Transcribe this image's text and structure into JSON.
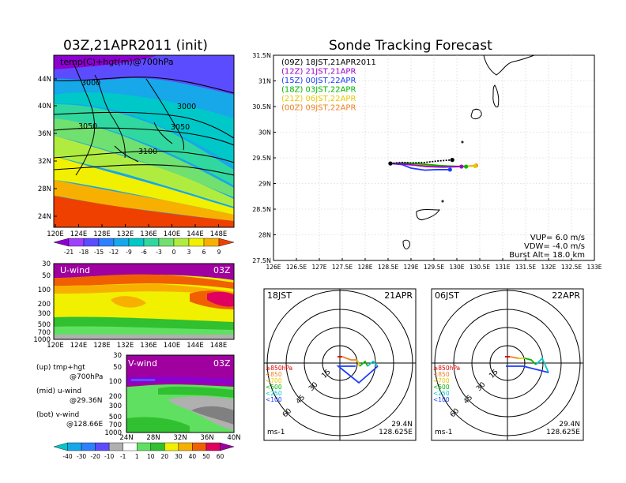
{
  "left": {
    "title": "03Z,21APR2011  (init)",
    "panel_label": "temp(C)+hgt(m)@700hPa",
    "lon_ticks": [
      "120E",
      "124E",
      "128E",
      "132E",
      "136E",
      "140E",
      "144E",
      "148E"
    ],
    "lat_ticks": [
      "44N",
      "40N",
      "36N",
      "32N",
      "28N",
      "24N"
    ],
    "contours": [
      "3000",
      "3000",
      "3050",
      "3050",
      "3100"
    ],
    "temp_scale": {
      "labels": [
        "-21",
        "-18",
        "-15",
        "-12",
        "-9",
        "-6",
        "-3",
        "0",
        "3",
        "6",
        "9"
      ],
      "colors": [
        "#8c00d0",
        "#a040ff",
        "#5c4cff",
        "#2e80ff",
        "#16a8e8",
        "#00c8c8",
        "#30d8a0",
        "#70e070",
        "#b0ec40",
        "#f0f000",
        "#f8b000",
        "#f04000"
      ]
    },
    "uwind": {
      "label": "U-wind",
      "time": "03Z",
      "p_ticks": [
        "30",
        "50",
        "100",
        "200",
        "300",
        "500",
        "700",
        "1000"
      ],
      "lon_ticks": [
        "120E",
        "124E",
        "128E",
        "132E",
        "136E",
        "140E",
        "144E",
        "148E"
      ]
    },
    "vwind": {
      "label": "V-wind",
      "time": "03Z",
      "p_ticks": [
        "30",
        "50",
        "100",
        "200",
        "300",
        "500",
        "700",
        "1000"
      ],
      "lat_ticks": [
        "24N",
        "28N",
        "32N",
        "36N",
        "40N"
      ]
    },
    "legend_text": {
      "up1": "(up) tmp+hgt",
      "up2": "@700hPa",
      "mid1": "(mid) u-wind",
      "mid2": "@29.36N",
      "bot1": "(bot) v-wind",
      "bot2": "@128.66E"
    },
    "wind_scale": {
      "labels": [
        "-40",
        "-30",
        "-20",
        "-10",
        "-1",
        "1",
        "10",
        "20",
        "30",
        "40",
        "50",
        "60"
      ],
      "colors": [
        "#00c8c8",
        "#16a8e8",
        "#2e80ff",
        "#5c4cff",
        "#b0b0b0",
        "#ffffff",
        "#60e060",
        "#30c030",
        "#f0f000",
        "#f8b000",
        "#f06000",
        "#e00060",
        "#a000a0"
      ]
    }
  },
  "right": {
    "title": "Sonde Tracking Forecast",
    "lon_ticks": [
      "126E",
      "126.5E",
      "127E",
      "127.5E",
      "128E",
      "128.5E",
      "129E",
      "129.5E",
      "130E",
      "130.5E",
      "131E",
      "131.5E",
      "132E",
      "132.5E",
      "133E"
    ],
    "lat_ticks": [
      "31.5N",
      "31N",
      "30.5N",
      "30N",
      "29.5N",
      "29N",
      "28.5N",
      "28N",
      "27.5N"
    ],
    "legend": [
      {
        "text": "(09Z)  18JST,21APR2011",
        "color": "#000000"
      },
      {
        "text": "(12Z)  21JST,21APR",
        "color": "#a000c8"
      },
      {
        "text": "(15Z)  00JST,22APR",
        "color": "#1c3cff"
      },
      {
        "text": "(18Z)  03JST,22APR",
        "color": "#00b400"
      },
      {
        "text": "(21Z)  06JST,22APR",
        "color": "#e8c800"
      },
      {
        "text": "(00Z)  09JST,22APR",
        "color": "#f08020"
      }
    ],
    "params": {
      "vup": "VUP=  6.0  m/s",
      "vdw": "VDW=  -4.0  m/s",
      "burst": "Burst Alt=  18.0  km"
    }
  },
  "hodo": [
    {
      "left": "18JST",
      "right": "21APR",
      "lat": "29.4N",
      "lon": "128.625E",
      "unit": "ms-1",
      "rings": [
        "15",
        "30",
        "45",
        "60"
      ]
    },
    {
      "left": "06JST",
      "right": "22APR",
      "lat": "29.4N",
      "lon": "128.625E",
      "unit": "ms-1",
      "rings": [
        "15",
        "30",
        "45",
        "60"
      ]
    }
  ],
  "hodo_legend": [
    {
      "text": "≥850hPa",
      "color": "#e00000"
    },
    {
      "text": "<850",
      "color": "#f08020"
    },
    {
      "text": "<700",
      "color": "#e8c800"
    },
    {
      "text": "<500",
      "color": "#00b400"
    },
    {
      "text": "<250",
      "color": "#00c8c8"
    },
    {
      "text": "<100",
      "color": "#1c3cff"
    }
  ],
  "chart_data": [
    {
      "type": "line",
      "title": "Sonde Tracking Forecast",
      "x_unit": "deg E",
      "y_unit": "deg N",
      "xlim": [
        126,
        133
      ],
      "ylim": [
        27.5,
        31.5
      ],
      "series": [
        {
          "name": "(09Z)  18JST,21APR2011",
          "x": [
            128.55,
            128.8,
            129.0,
            129.3,
            129.6,
            129.9
          ],
          "y": [
            29.39,
            29.41,
            29.4,
            29.41,
            29.44,
            29.46
          ]
        },
        {
          "name": "(12Z)  21JST,21APR",
          "x": [
            128.55,
            128.8,
            129.05,
            129.35,
            129.7,
            130.1
          ],
          "y": [
            29.39,
            29.38,
            29.36,
            29.33,
            29.32,
            29.33
          ]
        },
        {
          "name": "(15Z)  00JST,22APR",
          "x": [
            128.55,
            128.8,
            129.0,
            129.3,
            129.55,
            129.85
          ],
          "y": [
            29.39,
            29.37,
            29.3,
            29.26,
            29.27,
            29.27
          ]
        },
        {
          "name": "(18Z)  03JST,22APR",
          "x": [
            128.55,
            128.9,
            129.25,
            129.6,
            130.05,
            130.2
          ],
          "y": [
            29.39,
            29.4,
            29.38,
            29.35,
            29.33,
            29.33
          ]
        },
        {
          "name": "(21Z)  06JST,22APR",
          "x": [
            128.55,
            128.9,
            129.35,
            129.8,
            130.2,
            130.4
          ],
          "y": [
            29.39,
            29.39,
            29.37,
            29.34,
            29.33,
            29.34
          ]
        },
        {
          "name": "(00Z)  09JST,22APR",
          "x": [
            128.55,
            128.95,
            129.4,
            129.85,
            130.25,
            130.42
          ],
          "y": [
            29.39,
            29.38,
            29.35,
            29.33,
            29.34,
            29.35
          ]
        }
      ]
    }
  ]
}
